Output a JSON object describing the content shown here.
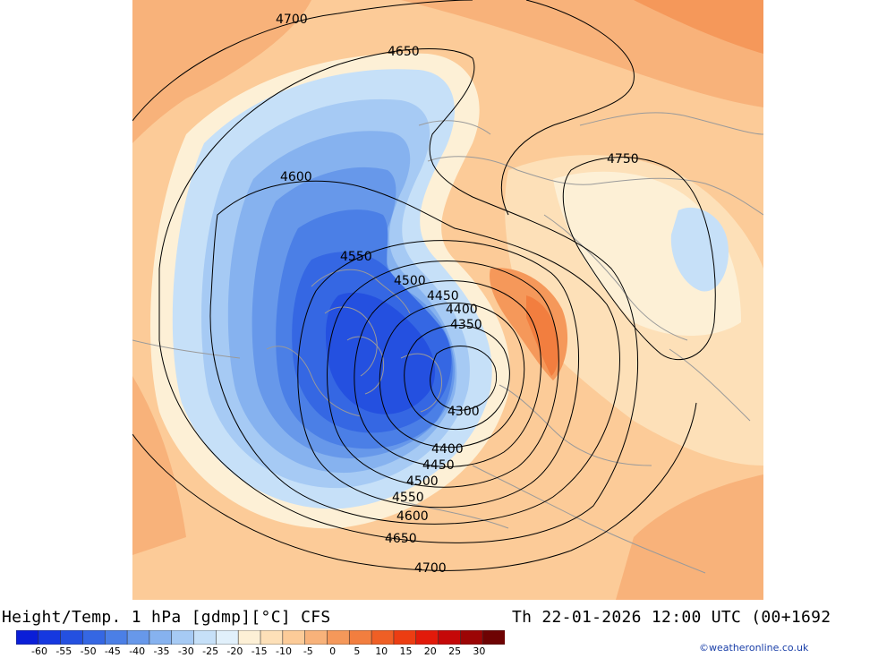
{
  "title": "Height/Temp. 1 hPa [gdmp][°C] CFS",
  "valid_time": "Th 22-01-2026 12:00 UTC (00+1692",
  "credit": "©weatheronline.co.uk",
  "colorbar": {
    "tick_labels": [
      "-60",
      "-55",
      "-50",
      "-45",
      "-40",
      "-35",
      "-30",
      "-25",
      "-20",
      "-15",
      "-10",
      "-5",
      "0",
      "5",
      "10",
      "15",
      "20",
      "25",
      "30"
    ],
    "colors": [
      "#0a1ed8",
      "#1638e0",
      "#2450e0",
      "#3567e3",
      "#4b7fe6",
      "#6798ea",
      "#86b2ef",
      "#a6caf4",
      "#c6e0f8",
      "#e1f0fb",
      "#fdf0d6",
      "#fde0b8",
      "#fccb98",
      "#f8b27a",
      "#f5985a",
      "#f27e3f",
      "#ef5f25",
      "#ec3d12",
      "#e21a0a",
      "#c50808",
      "#9c0505",
      "#6e0303"
    ]
  },
  "map": {
    "temperature_field": "1 hPa temperature shaded",
    "contour_labels": [
      {
        "id": "4700-top",
        "text": "4700"
      },
      {
        "id": "4650-top",
        "text": "4650"
      },
      {
        "id": "4600-left",
        "text": "4600"
      },
      {
        "id": "4550-top",
        "text": "4550"
      },
      {
        "id": "4500-top",
        "text": "4500"
      },
      {
        "id": "4450-top",
        "text": "4450"
      },
      {
        "id": "4400-top",
        "text": "4400"
      },
      {
        "id": "4350",
        "text": "4350"
      },
      {
        "id": "4300",
        "text": "4300"
      },
      {
        "id": "4400-bottom",
        "text": "4400"
      },
      {
        "id": "4450-bottom",
        "text": "4450"
      },
      {
        "id": "4500-bottom",
        "text": "4500"
      },
      {
        "id": "4550-bottom",
        "text": "4550"
      },
      {
        "id": "4600-bottom",
        "text": "4600"
      },
      {
        "id": "4650-bottom",
        "text": "4650"
      },
      {
        "id": "4700-bottom",
        "text": "4700"
      },
      {
        "id": "4750",
        "text": "4750"
      }
    ]
  }
}
